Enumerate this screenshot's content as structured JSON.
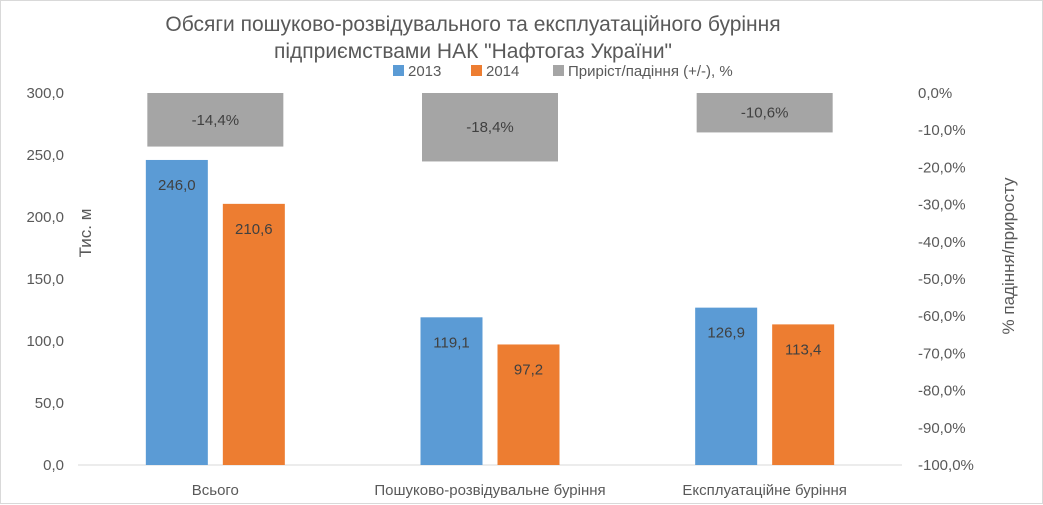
{
  "chart_data": {
    "type": "bar",
    "title": [
      "Обсяги пошуково-розвідувального та експлуатаційного буріння",
      "підприємствами НАК \"Нафтогаз України\""
    ],
    "categories": [
      "Всього",
      "Пошуково-розвідувальне буріння",
      "Експлуатаційне буріння"
    ],
    "series": [
      {
        "name": "2013",
        "axis": "left",
        "color": "#5b9bd5",
        "values": [
          246.0,
          119.1,
          126.9
        ],
        "labels": [
          "246,0",
          "119,1",
          "126,9"
        ]
      },
      {
        "name": "2014",
        "axis": "left",
        "color": "#ed7d31",
        "values": [
          210.6,
          97.2,
          113.4
        ],
        "labels": [
          "210,6",
          "97,2",
          "113,4"
        ]
      },
      {
        "name": "Приріст/падіння (+/-), %",
        "axis": "right",
        "color": "#a5a5a5",
        "values": [
          -14.4,
          -18.4,
          -10.6
        ],
        "labels": [
          "-14,4%",
          "-18,4%",
          "-10,6%"
        ]
      }
    ],
    "ylabel": "Тис. м",
    "y2label": "% падіння/приросту",
    "ylim": [
      0,
      300
    ],
    "y2lim": [
      -100,
      0
    ],
    "yticks": [
      "0,0",
      "50,0",
      "100,0",
      "150,0",
      "200,0",
      "250,0",
      "300,0"
    ],
    "y2ticks": [
      "-100,0%",
      "-90,0%",
      "-80,0%",
      "-70,0%",
      "-60,0%",
      "-50,0%",
      "-40,0%",
      "-30,0%",
      "-20,0%",
      "-10,0%",
      "0,0%"
    ],
    "legend_position": "top",
    "grid": false
  }
}
